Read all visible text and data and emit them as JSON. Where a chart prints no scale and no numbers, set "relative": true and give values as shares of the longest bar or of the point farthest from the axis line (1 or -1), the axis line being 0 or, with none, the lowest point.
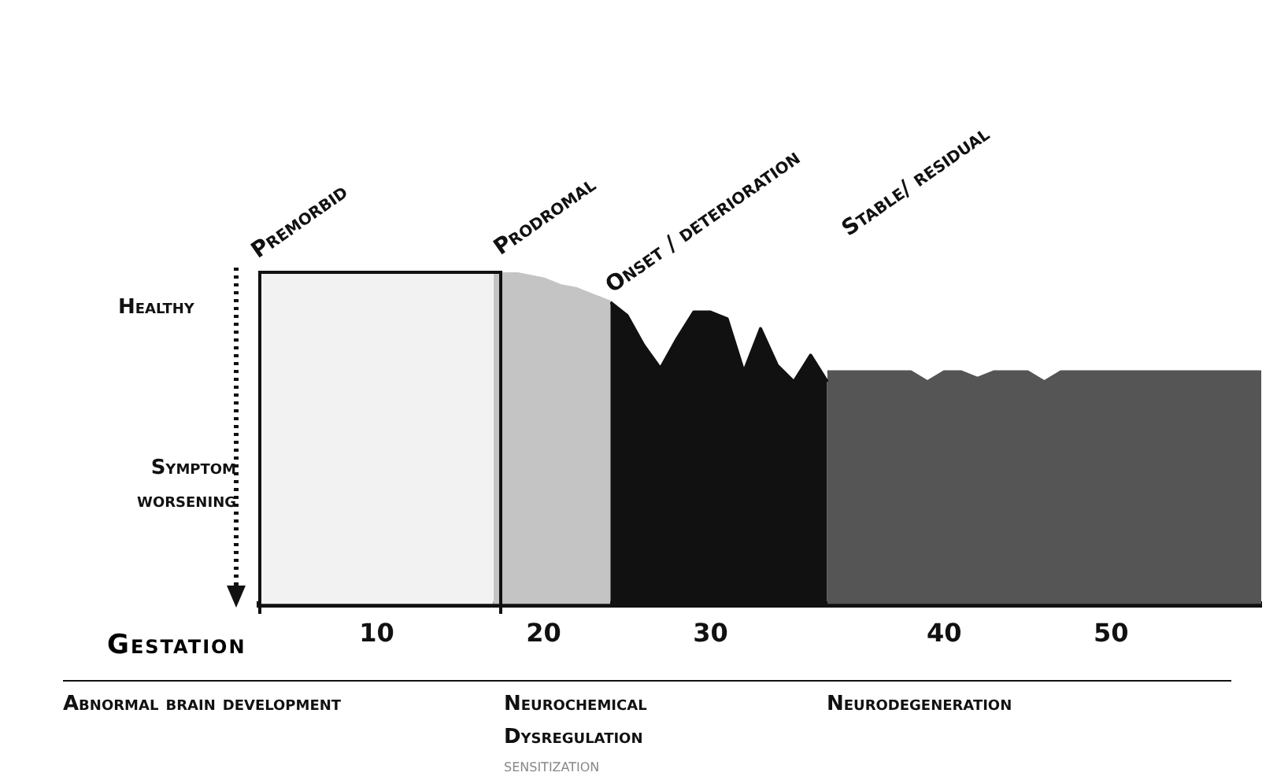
{
  "chart_data": {
    "type": "area",
    "relative": true,
    "grid": false,
    "legend": false,
    "marker": "none",
    "xlabel": "Gestation",
    "categories": [
      null,
      null,
      null,
      null,
      null,
      null,
      null,
      "10",
      null,
      null,
      null,
      null,
      null,
      null,
      null,
      null,
      null,
      "20",
      null,
      null,
      null,
      null,
      null,
      null,
      null,
      null,
      null,
      "30",
      null,
      null,
      null,
      null,
      null,
      null,
      null,
      null,
      null,
      null,
      null,
      null,
      null,
      "40",
      null,
      null,
      null,
      null,
      null,
      null,
      null,
      null,
      null,
      "50",
      null,
      null,
      null,
      null,
      null,
      null,
      null,
      null,
      null
    ],
    "series": [
      {
        "color": "#f2f2f2",
        "values": [
          1,
          1,
          1,
          1,
          1,
          1,
          1,
          1,
          1,
          1,
          1,
          1,
          1,
          1,
          1,
          null,
          null,
          null,
          null,
          null,
          null,
          null,
          null,
          null,
          null,
          null,
          null,
          null,
          null,
          null,
          null,
          null,
          null,
          null,
          null,
          null,
          null,
          null,
          null,
          null,
          null,
          null,
          null,
          null,
          null,
          null,
          null,
          null,
          null,
          null,
          null,
          null,
          null,
          null,
          null,
          null,
          null,
          null,
          null,
          null,
          null
        ]
      },
      {
        "color": "#c4c4c4",
        "values": [
          null,
          null,
          null,
          null,
          null,
          null,
          null,
          null,
          null,
          null,
          null,
          null,
          null,
          null,
          1,
          1,
          0.99,
          0.98,
          0.96,
          0.95,
          0.93,
          0.91,
          null,
          null,
          null,
          null,
          null,
          null,
          null,
          null,
          null,
          null,
          null,
          null,
          null,
          null,
          null,
          null,
          null,
          null,
          null,
          null,
          null,
          null,
          null,
          null,
          null,
          null,
          null,
          null,
          null,
          null,
          null,
          null,
          null,
          null,
          null,
          null,
          null,
          null,
          null
        ]
      },
      {
        "color": "#111111",
        "values": [
          null,
          null,
          null,
          null,
          null,
          null,
          null,
          null,
          null,
          null,
          null,
          null,
          null,
          null,
          null,
          null,
          null,
          null,
          null,
          null,
          null,
          0.91,
          0.87,
          0.78,
          0.71,
          0.8,
          0.88,
          0.88,
          0.86,
          0.7,
          0.83,
          0.72,
          0.67,
          0.75,
          0.67,
          null,
          null,
          null,
          null,
          null,
          null,
          null,
          null,
          null,
          null,
          null,
          null,
          null,
          null,
          null,
          null,
          null,
          null,
          null,
          null,
          null,
          null,
          null,
          null,
          null,
          null
        ]
      },
      {
        "color": "#555555",
        "values": [
          null,
          null,
          null,
          null,
          null,
          null,
          null,
          null,
          null,
          null,
          null,
          null,
          null,
          null,
          null,
          null,
          null,
          null,
          null,
          null,
          null,
          null,
          null,
          null,
          null,
          null,
          null,
          null,
          null,
          null,
          null,
          null,
          null,
          null,
          0.7,
          0.7,
          0.7,
          0.7,
          0.7,
          0.7,
          0.67,
          0.7,
          0.7,
          0.68,
          0.7,
          0.7,
          0.7,
          0.67,
          0.7,
          0.7,
          0.7,
          0.7,
          0.7,
          0.7,
          0.7,
          0.7,
          0.7,
          0.7,
          0.7,
          0.7,
          0.7
        ]
      }
    ],
    "annotations": [
      "Premorbid",
      "Prodromal",
      "Onset / deterioration",
      "Stable/ residual",
      "Healthy",
      "Symptom worsening",
      "Abnormal brain development",
      "Neurochemical Dysregulation",
      "sensitization",
      "Neurodegeneration"
    ]
  }
}
